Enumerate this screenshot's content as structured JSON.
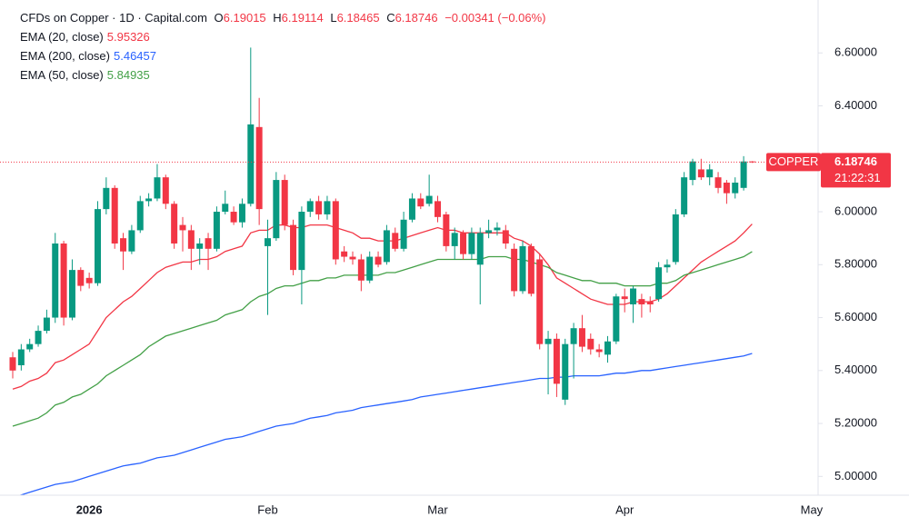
{
  "chart_data": {
    "type": "candlestick",
    "title": "CFDs on Copper · 1D · Capital.com",
    "ohlc_labels": [
      "O",
      "H",
      "L",
      "C"
    ],
    "change_text": "−0.00341 (−0.06%)",
    "symbol_tag": "COPPER",
    "countdown": "21:22:31",
    "up_color": "#089981",
    "down_color": "#f23645",
    "ylim": [
      4.929,
      6.8
    ],
    "yticks": [
      {
        "value": 5.0,
        "label": "5.00000"
      },
      {
        "value": 5.2,
        "label": "5.20000"
      },
      {
        "value": 5.4,
        "label": "5.40000"
      },
      {
        "value": 5.6,
        "label": "5.60000"
      },
      {
        "value": 5.8,
        "label": "5.80000"
      },
      {
        "value": 6.0,
        "label": "6.00000"
      },
      {
        "value": 6.2,
        "label": "6.20000"
      },
      {
        "value": 6.4,
        "label": "6.40000"
      },
      {
        "value": 6.6,
        "label": "6.60000"
      }
    ],
    "categories": [
      null,
      null,
      null,
      null,
      null,
      null,
      null,
      null,
      null,
      "2026",
      null,
      null,
      null,
      null,
      null,
      null,
      null,
      null,
      null,
      null,
      null,
      null,
      null,
      null,
      null,
      null,
      null,
      null,
      null,
      null,
      "Feb",
      null,
      null,
      null,
      null,
      null,
      null,
      null,
      null,
      null,
      null,
      null,
      null,
      null,
      null,
      null,
      null,
      null,
      null,
      null,
      "Mar",
      null,
      null,
      null,
      null,
      null,
      null,
      null,
      null,
      null,
      null,
      null,
      null,
      null,
      null,
      null,
      null,
      null,
      null,
      null,
      null,
      null,
      "Apr",
      null,
      null,
      null,
      null,
      null,
      null,
      null,
      null,
      null,
      null,
      null,
      null,
      null,
      null,
      null,
      null,
      null,
      null,
      null,
      null,
      null,
      "May"
    ],
    "open": [
      5.45,
      5.42,
      5.48,
      5.5,
      5.55,
      5.6,
      5.88,
      5.6,
      5.78,
      5.75,
      5.73,
      6.01,
      6.09,
      5.9,
      5.85,
      5.93,
      6.04,
      6.05,
      6.13,
      6.03,
      5.95,
      5.93,
      5.86,
      5.9,
      5.86,
      6.0,
      6.0,
      5.96,
      6.03,
      6.32,
      5.87,
      5.9,
      6.12,
      5.95,
      5.78,
      6.0,
      6.04,
      5.99,
      6.04,
      5.85,
      5.83,
      5.82,
      5.74,
      5.83,
      5.81,
      5.92,
      5.86,
      5.97,
      6.05,
      6.03,
      6.04,
      5.99,
      5.87,
      5.92,
      5.84,
      5.8,
      5.92,
      5.93,
      5.93,
      5.86,
      5.7,
      5.87,
      5.82,
      5.5,
      5.52,
      5.29,
      5.5,
      5.56,
      5.52,
      5.48,
      5.46,
      5.51,
      5.68,
      5.65,
      5.67,
      5.66,
      5.67,
      5.79,
      5.81,
      5.99,
      6.12,
      6.16,
      6.13,
      6.13,
      6.11,
      6.07,
      6.09,
      6.19015,
      null,
      null,
      null,
      null,
      null,
      null,
      null
    ],
    "high": [
      5.47,
      5.5,
      5.52,
      5.57,
      5.63,
      5.92,
      5.89,
      5.82,
      5.79,
      5.77,
      6.04,
      6.13,
      6.1,
      5.92,
      5.95,
      6.06,
      6.07,
      6.18,
      6.14,
      6.04,
      5.98,
      5.95,
      5.9,
      5.92,
      6.02,
      6.08,
      6.02,
      6.05,
      6.62,
      6.43,
      5.97,
      6.15,
      6.14,
      5.97,
      6.02,
      6.05,
      6.06,
      6.06,
      6.05,
      5.87,
      5.85,
      5.84,
      5.85,
      5.85,
      5.95,
      5.94,
      6.0,
      6.07,
      6.07,
      6.14,
      6.06,
      6.0,
      5.94,
      5.93,
      5.94,
      5.94,
      5.97,
      5.96,
      5.95,
      5.88,
      5.89,
      5.88,
      5.84,
      5.55,
      5.54,
      5.52,
      5.58,
      5.61,
      5.54,
      5.5,
      5.53,
      5.69,
      5.71,
      5.72,
      5.69,
      5.68,
      5.81,
      5.82,
      6.01,
      6.15,
      6.2,
      6.2,
      6.18,
      6.15,
      6.12,
      6.13,
      6.21,
      6.19114,
      null,
      null,
      null,
      null,
      null,
      null,
      null
    ],
    "low": [
      5.37,
      5.4,
      5.47,
      5.49,
      5.54,
      5.58,
      5.57,
      5.59,
      5.7,
      5.71,
      5.72,
      5.99,
      5.86,
      5.78,
      5.84,
      5.92,
      6.02,
      6.04,
      6.01,
      5.86,
      5.85,
      5.78,
      5.8,
      5.78,
      5.85,
      5.99,
      5.95,
      5.94,
      6.02,
      5.95,
      5.61,
      5.89,
      5.93,
      5.76,
      5.65,
      5.98,
      5.97,
      5.97,
      5.8,
      5.81,
      5.8,
      5.7,
      5.73,
      5.79,
      5.8,
      5.85,
      5.85,
      5.96,
      6.01,
      6.02,
      5.96,
      5.85,
      5.82,
      5.82,
      5.82,
      5.65,
      5.9,
      5.91,
      5.86,
      5.68,
      5.69,
      5.68,
      5.48,
      5.31,
      5.3,
      5.27,
      5.37,
      5.47,
      5.46,
      5.45,
      5.43,
      5.5,
      5.62,
      5.58,
      5.6,
      5.62,
      5.66,
      5.77,
      5.8,
      5.98,
      6.1,
      6.12,
      6.1,
      6.07,
      6.03,
      6.05,
      6.08,
      6.18465,
      null,
      null,
      null,
      null,
      null,
      null,
      null
    ],
    "close": [
      5.4,
      5.48,
      5.5,
      5.55,
      5.6,
      5.88,
      5.6,
      5.78,
      5.72,
      5.73,
      6.01,
      6.09,
      5.88,
      5.85,
      5.93,
      6.04,
      6.05,
      6.13,
      6.03,
      5.88,
      5.93,
      5.86,
      5.88,
      5.86,
      6.0,
      6.03,
      5.96,
      6.03,
      6.33,
      6.01,
      5.9,
      6.12,
      5.95,
      5.78,
      6.0,
      6.04,
      5.99,
      6.04,
      5.82,
      5.83,
      5.82,
      5.74,
      5.83,
      5.8,
      5.93,
      5.86,
      5.97,
      6.05,
      6.02,
      6.06,
      5.98,
      5.87,
      5.92,
      5.84,
      5.92,
      5.92,
      5.93,
      5.94,
      5.88,
      5.7,
      5.87,
      5.69,
      5.5,
      5.52,
      5.35,
      5.5,
      5.56,
      5.49,
      5.48,
      5.47,
      5.51,
      5.68,
      5.67,
      5.71,
      5.65,
      5.65,
      5.79,
      5.8,
      5.99,
      6.13,
      6.19,
      6.13,
      6.16,
      6.09,
      6.07,
      6.11,
      6.19,
      6.18746,
      null,
      null,
      null,
      null,
      null,
      null,
      null
    ],
    "series": [
      {
        "name": "EMA (20, close)",
        "color": "#f23645",
        "values": [
          5.33,
          5.34,
          5.36,
          5.37,
          5.39,
          5.43,
          5.44,
          5.46,
          5.48,
          5.5,
          5.55,
          5.6,
          5.63,
          5.66,
          5.68,
          5.71,
          5.74,
          5.77,
          5.79,
          5.8,
          5.81,
          5.81,
          5.82,
          5.82,
          5.83,
          5.85,
          5.86,
          5.87,
          5.92,
          5.93,
          5.93,
          5.95,
          5.95,
          5.94,
          5.94,
          5.95,
          5.95,
          5.95,
          5.94,
          5.93,
          5.92,
          5.9,
          5.9,
          5.89,
          5.89,
          5.89,
          5.9,
          5.91,
          5.92,
          5.93,
          5.94,
          5.93,
          5.93,
          5.92,
          5.92,
          5.92,
          5.92,
          5.92,
          5.92,
          5.9,
          5.89,
          5.87,
          5.84,
          5.8,
          5.75,
          5.73,
          5.71,
          5.69,
          5.67,
          5.66,
          5.65,
          5.65,
          5.65,
          5.66,
          5.66,
          5.66,
          5.67,
          5.69,
          5.72,
          5.75,
          5.78,
          5.81,
          5.83,
          5.85,
          5.87,
          5.89,
          5.92,
          5.95326,
          null,
          null,
          null,
          null,
          null,
          null,
          null
        ]
      },
      {
        "name": "EMA (200, close)",
        "color": "#2962ff",
        "values": [
          4.92,
          4.93,
          4.94,
          4.95,
          4.96,
          4.97,
          4.975,
          4.98,
          4.99,
          5.0,
          5.01,
          5.02,
          5.03,
          5.04,
          5.045,
          5.05,
          5.06,
          5.07,
          5.075,
          5.08,
          5.09,
          5.1,
          5.11,
          5.12,
          5.13,
          5.14,
          5.145,
          5.15,
          5.16,
          5.17,
          5.18,
          5.19,
          5.195,
          5.2,
          5.21,
          5.22,
          5.225,
          5.23,
          5.24,
          5.245,
          5.25,
          5.26,
          5.265,
          5.27,
          5.275,
          5.28,
          5.285,
          5.29,
          5.3,
          5.305,
          5.31,
          5.315,
          5.32,
          5.325,
          5.33,
          5.335,
          5.34,
          5.345,
          5.35,
          5.355,
          5.36,
          5.365,
          5.37,
          5.37,
          5.375,
          5.375,
          5.38,
          5.38,
          5.38,
          5.38,
          5.385,
          5.39,
          5.39,
          5.395,
          5.4,
          5.4,
          5.405,
          5.41,
          5.415,
          5.42,
          5.425,
          5.43,
          5.435,
          5.44,
          5.445,
          5.45,
          5.455,
          5.46457,
          null,
          null,
          null,
          null,
          null,
          null,
          null
        ]
      },
      {
        "name": "EMA (50, close)",
        "color": "#43a047",
        "values": [
          5.19,
          5.2,
          5.21,
          5.22,
          5.24,
          5.27,
          5.28,
          5.3,
          5.31,
          5.33,
          5.35,
          5.38,
          5.4,
          5.42,
          5.44,
          5.46,
          5.49,
          5.51,
          5.53,
          5.54,
          5.55,
          5.56,
          5.57,
          5.58,
          5.59,
          5.61,
          5.62,
          5.63,
          5.66,
          5.68,
          5.69,
          5.71,
          5.72,
          5.72,
          5.73,
          5.74,
          5.74,
          5.75,
          5.75,
          5.76,
          5.76,
          5.76,
          5.76,
          5.76,
          5.77,
          5.77,
          5.78,
          5.79,
          5.8,
          5.81,
          5.82,
          5.82,
          5.82,
          5.82,
          5.82,
          5.82,
          5.83,
          5.83,
          5.83,
          5.82,
          5.82,
          5.81,
          5.8,
          5.79,
          5.77,
          5.76,
          5.75,
          5.74,
          5.74,
          5.73,
          5.73,
          5.73,
          5.72,
          5.72,
          5.72,
          5.72,
          5.73,
          5.73,
          5.74,
          5.76,
          5.77,
          5.78,
          5.79,
          5.8,
          5.81,
          5.82,
          5.83,
          5.84935,
          null,
          null,
          null,
          null,
          null,
          null,
          null
        ]
      }
    ]
  }
}
